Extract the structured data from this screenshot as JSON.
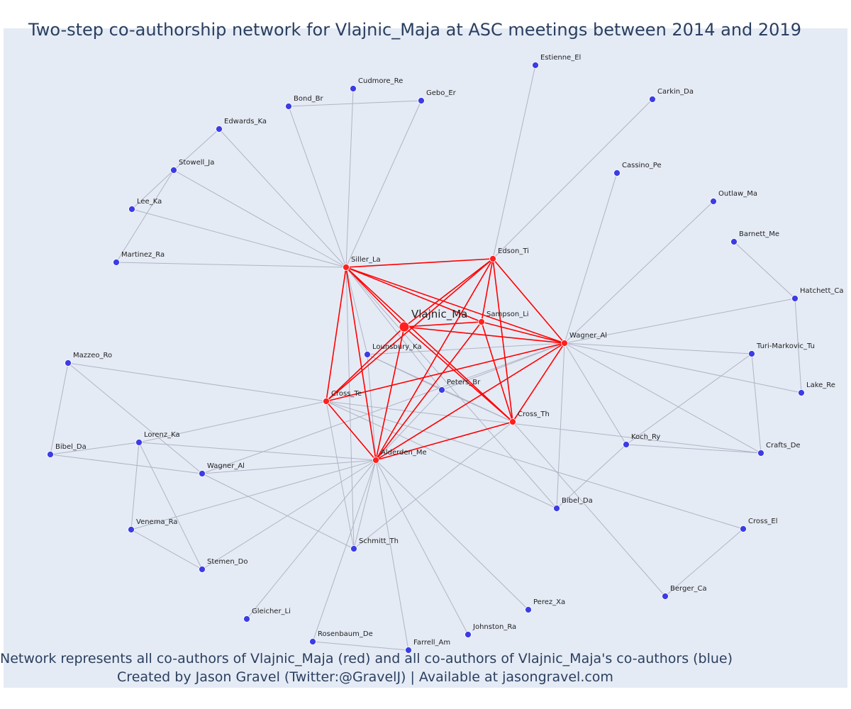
{
  "title": "Two-step co-authorship network for Vlajnic_Maja at ASC meetings between 2014 and 2019",
  "captions": {
    "line1": "Network represents all co-authors of Vlajnic_Maja (red) and all co-authors of Vlajnic_Maja's co-authors (blue)",
    "line2": "Created by Jason Gravel (Twitter:@GravelJ) | Available at jasongravel.com"
  },
  "colors": {
    "background": "#e5ebf5",
    "ego_edge": "#ff0000",
    "other_edge": "#b0b4c4",
    "ego_node": "#ff2020",
    "coauthor_node": "#ff2020",
    "second_node": "#3c3ce6"
  },
  "nodes": [
    {
      "id": "vlajnic",
      "label": "Vlajnic_Ma",
      "type": "ego"
    },
    {
      "id": "siller",
      "label": "Siller_La",
      "type": "coauthor"
    },
    {
      "id": "edson",
      "label": "Edson_Ti",
      "type": "coauthor"
    },
    {
      "id": "sampson",
      "label": "Sampson_Li",
      "type": "coauthor"
    },
    {
      "id": "wagner1",
      "label": "Wagner_Al",
      "type": "coauthor"
    },
    {
      "id": "crosste",
      "label": "Cross_Te",
      "type": "coauthor"
    },
    {
      "id": "crossth",
      "label": "Cross_Th",
      "type": "coauthor"
    },
    {
      "id": "alderden",
      "label": "Alderden_Me",
      "type": "coauthor"
    },
    {
      "id": "estienne",
      "label": "Estienne_El",
      "type": "second"
    },
    {
      "id": "cudmore",
      "label": "Cudmore_Re",
      "type": "second"
    },
    {
      "id": "gebo",
      "label": "Gebo_Er",
      "type": "second"
    },
    {
      "id": "bond",
      "label": "Bond_Br",
      "type": "second"
    },
    {
      "id": "carkin",
      "label": "Carkin_Da",
      "type": "second"
    },
    {
      "id": "edwards",
      "label": "Edwards_Ka",
      "type": "second"
    },
    {
      "id": "stowell",
      "label": "Stowell_Ja",
      "type": "second"
    },
    {
      "id": "cassino",
      "label": "Cassino_Pe",
      "type": "second"
    },
    {
      "id": "lee",
      "label": "Lee_Ka",
      "type": "second"
    },
    {
      "id": "outlaw",
      "label": "Outlaw_Ma",
      "type": "second"
    },
    {
      "id": "barnett",
      "label": "Barnett_Me",
      "type": "second"
    },
    {
      "id": "martinez",
      "label": "Martinez_Ra",
      "type": "second"
    },
    {
      "id": "hatchett",
      "label": "Hatchett_Ca",
      "type": "second"
    },
    {
      "id": "lounsbury",
      "label": "Lounsbury_Ka",
      "type": "second"
    },
    {
      "id": "turi",
      "label": "Turi-Markovic_Tu",
      "type": "second"
    },
    {
      "id": "mazzeo",
      "label": "Mazzeo_Ro",
      "type": "second"
    },
    {
      "id": "peters",
      "label": "Peters_Br",
      "type": "second"
    },
    {
      "id": "lake",
      "label": "Lake_Re",
      "type": "second"
    },
    {
      "id": "lorenz",
      "label": "Lorenz_Ka",
      "type": "second"
    },
    {
      "id": "koch",
      "label": "Koch_Ry",
      "type": "second"
    },
    {
      "id": "bibel1",
      "label": "Bibel_Da",
      "type": "second"
    },
    {
      "id": "crafts",
      "label": "Crafts_De",
      "type": "second"
    },
    {
      "id": "wagner2",
      "label": "Wagner_Al",
      "type": "second"
    },
    {
      "id": "bibel2",
      "label": "Bibel_Da",
      "type": "second"
    },
    {
      "id": "venema",
      "label": "Venema_Ra",
      "type": "second"
    },
    {
      "id": "crossel",
      "label": "Cross_El",
      "type": "second"
    },
    {
      "id": "schmitt",
      "label": "Schmitt_Th",
      "type": "second"
    },
    {
      "id": "stemen",
      "label": "Stemen_Do",
      "type": "second"
    },
    {
      "id": "berger",
      "label": "Berger_Ca",
      "type": "second"
    },
    {
      "id": "perez",
      "label": "Perez_Xa",
      "type": "second"
    },
    {
      "id": "gleicher",
      "label": "Gleicher_Li",
      "type": "second"
    },
    {
      "id": "johnston",
      "label": "Johnston_Ra",
      "type": "second"
    },
    {
      "id": "rosenbaum",
      "label": "Rosenbaum_De",
      "type": "second"
    },
    {
      "id": "farrell",
      "label": "Farrell_Am",
      "type": "second"
    }
  ],
  "edges": [
    [
      "vlajnic",
      "siller"
    ],
    [
      "vlajnic",
      "edson"
    ],
    [
      "vlajnic",
      "sampson"
    ],
    [
      "vlajnic",
      "wagner1"
    ],
    [
      "vlajnic",
      "crosste"
    ],
    [
      "vlajnic",
      "crossth"
    ],
    [
      "vlajnic",
      "alderden"
    ],
    [
      "siller",
      "edson"
    ],
    [
      "siller",
      "sampson"
    ],
    [
      "siller",
      "wagner1"
    ],
    [
      "siller",
      "crosste"
    ],
    [
      "siller",
      "crossth"
    ],
    [
      "siller",
      "alderden"
    ],
    [
      "edson",
      "sampson"
    ],
    [
      "edson",
      "wagner1"
    ],
    [
      "edson",
      "crossth"
    ],
    [
      "edson",
      "alderden"
    ],
    [
      "edson",
      "crosste"
    ],
    [
      "sampson",
      "wagner1"
    ],
    [
      "sampson",
      "crossth"
    ],
    [
      "sampson",
      "alderden"
    ],
    [
      "wagner1",
      "crosste"
    ],
    [
      "wagner1",
      "crossth"
    ],
    [
      "wagner1",
      "alderden"
    ],
    [
      "crosste",
      "alderden"
    ],
    [
      "crossth",
      "alderden"
    ],
    [
      "siller",
      "bond"
    ],
    [
      "siller",
      "cudmore"
    ],
    [
      "siller",
      "gebo"
    ],
    [
      "siller",
      "edwards"
    ],
    [
      "siller",
      "stowell"
    ],
    [
      "siller",
      "lee"
    ],
    [
      "siller",
      "martinez"
    ],
    [
      "siller",
      "lounsbury"
    ],
    [
      "siller",
      "peters"
    ],
    [
      "siller",
      "bibel1"
    ],
    [
      "siller",
      "schmitt"
    ],
    [
      "bond",
      "gebo"
    ],
    [
      "stowell",
      "lee"
    ],
    [
      "stowell",
      "martinez"
    ],
    [
      "stowell",
      "edwards"
    ],
    [
      "edson",
      "estienne"
    ],
    [
      "edson",
      "carkin"
    ],
    [
      "wagner1",
      "cassino"
    ],
    [
      "wagner1",
      "outlaw"
    ],
    [
      "wagner1",
      "hatchett"
    ],
    [
      "wagner1",
      "turi"
    ],
    [
      "wagner1",
      "lake"
    ],
    [
      "wagner1",
      "koch"
    ],
    [
      "wagner1",
      "crafts"
    ],
    [
      "wagner1",
      "bibel1"
    ],
    [
      "wagner1",
      "lounsbury"
    ],
    [
      "wagner1",
      "peters"
    ],
    [
      "wagner1",
      "wagner2"
    ],
    [
      "barnett",
      "hatchett"
    ],
    [
      "hatchett",
      "lake"
    ],
    [
      "turi",
      "crafts"
    ],
    [
      "turi",
      "koch"
    ],
    [
      "koch",
      "crafts"
    ],
    [
      "koch",
      "bibel1"
    ],
    [
      "crosste",
      "mazzeo"
    ],
    [
      "crosste",
      "lorenz"
    ],
    [
      "crosste",
      "crafts"
    ],
    [
      "crosste",
      "schmitt"
    ],
    [
      "crosste",
      "bibel1"
    ],
    [
      "crosste",
      "crossel"
    ],
    [
      "mazzeo",
      "bibel2"
    ],
    [
      "mazzeo",
      "wagner2"
    ],
    [
      "lorenz",
      "bibel2"
    ],
    [
      "lorenz",
      "venema"
    ],
    [
      "lorenz",
      "stemen"
    ],
    [
      "lorenz",
      "alderden"
    ],
    [
      "bibel2",
      "wagner2"
    ],
    [
      "venema",
      "stemen"
    ],
    [
      "alderden",
      "wagner2"
    ],
    [
      "alderden",
      "venema"
    ],
    [
      "alderden",
      "schmitt"
    ],
    [
      "alderden",
      "lounsbury"
    ],
    [
      "alderden",
      "peters"
    ],
    [
      "alderden",
      "perez"
    ],
    [
      "alderden",
      "gleicher"
    ],
    [
      "alderden",
      "johnston"
    ],
    [
      "alderden",
      "rosenbaum"
    ],
    [
      "alderden",
      "farrell"
    ],
    [
      "alderden",
      "stemen"
    ],
    [
      "wagner2",
      "schmitt"
    ],
    [
      "rosenbaum",
      "farrell"
    ],
    [
      "crossth",
      "berger"
    ],
    [
      "crossth",
      "lounsbury"
    ],
    [
      "crossth",
      "peters"
    ],
    [
      "crossth",
      "schmitt"
    ],
    [
      "crossel",
      "berger"
    ],
    [
      "lounsbury",
      "peters"
    ]
  ]
}
